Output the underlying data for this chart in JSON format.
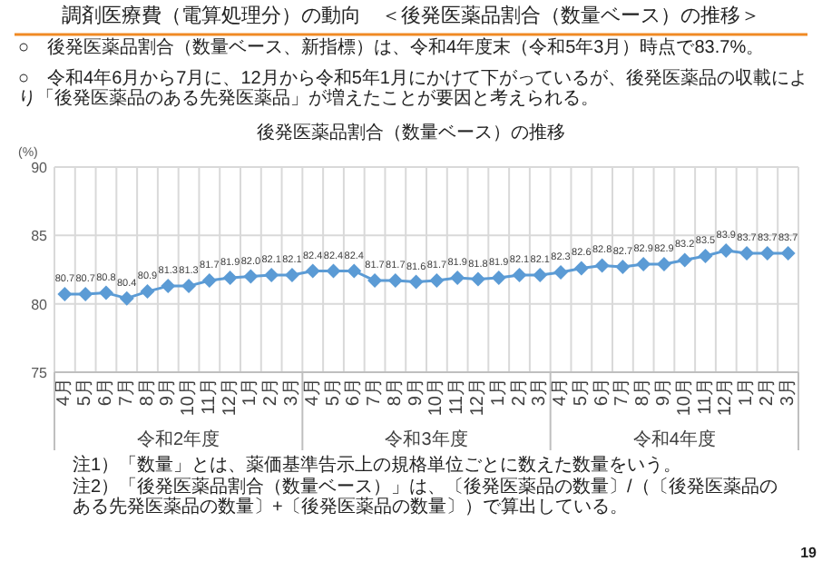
{
  "chart_data": {
    "type": "line",
    "title": "調剤医療費（電算処理分）の動向　＜後発医薬品割合（数量ベース）の推移＞",
    "subtitle": "後発医薬品割合（数量ベース）の推移",
    "ylabel": "(%)",
    "categories": [
      "4月",
      "5月",
      "6月",
      "7月",
      "8月",
      "9月",
      "10月",
      "11月",
      "12月",
      "1月",
      "2月",
      "3月",
      "4月",
      "5月",
      "6月",
      "7月",
      "8月",
      "9月",
      "10月",
      "11月",
      "12月",
      "1月",
      "2月",
      "3月",
      "4月",
      "5月",
      "6月",
      "7月",
      "8月",
      "9月",
      "10月",
      "11月",
      "12月",
      "1月",
      "2月",
      "3月"
    ],
    "series": [
      {
        "color": "#5b9bd5",
        "values": [
          80.7,
          80.7,
          80.8,
          80.4,
          80.9,
          81.3,
          81.3,
          81.7,
          81.9,
          82.0,
          82.1,
          82.1,
          82.4,
          82.4,
          82.4,
          81.7,
          81.7,
          81.6,
          81.7,
          81.9,
          81.8,
          81.9,
          82.1,
          82.1,
          82.3,
          82.6,
          82.8,
          82.7,
          82.9,
          82.9,
          83.2,
          83.5,
          83.9,
          83.7,
          83.7,
          83.7
        ],
        "value_labels": [
          "80.7",
          "80.7",
          "80.8",
          "80.4",
          "80.9",
          "81.3",
          "81.3",
          "81.7",
          "81.9",
          "82.0",
          "82.1",
          "82.1",
          "82.4",
          "82.4",
          "82.4",
          "81.7",
          "81.7",
          "81.6",
          "81.7",
          "81.9",
          "81.8",
          "81.9",
          "82.1",
          "82.1",
          "82.3",
          "82.6",
          "82.8",
          "82.7",
          "82.9",
          "82.9",
          "83.2",
          "83.5",
          "83.9",
          "83.7",
          "83.7",
          "83.7"
        ]
      }
    ],
    "ylim": [
      75,
      90
    ],
    "yticks": [
      75,
      80,
      85,
      90
    ],
    "grid": true,
    "marker": "diamond",
    "line_style": "solid",
    "annotations": [
      "○　後発医薬品割合（数量ベース、新指標）は、令和4年度末（令和5年3月）時点で83.7%。",
      "○　令和4年6月から7月に、12月から令和5年1月にかけて下がっているが、後発医薬品の収載により「後発医薬品のある先発医薬品」が増えたことが要因と考えられる。",
      "令和2年度",
      "令和3年度",
      "令和4年度",
      "注1）「数量」とは、薬価基準告示上の規格単位ごとに数えた数量をいう。",
      "注2）「後発医薬品割合（数量ベース）」は、〔後発医薬品の数量〕/（〔後発医薬品のある先発医薬品の数量〕+〔後発医薬品の数量〕）で算出している。",
      "19"
    ]
  }
}
